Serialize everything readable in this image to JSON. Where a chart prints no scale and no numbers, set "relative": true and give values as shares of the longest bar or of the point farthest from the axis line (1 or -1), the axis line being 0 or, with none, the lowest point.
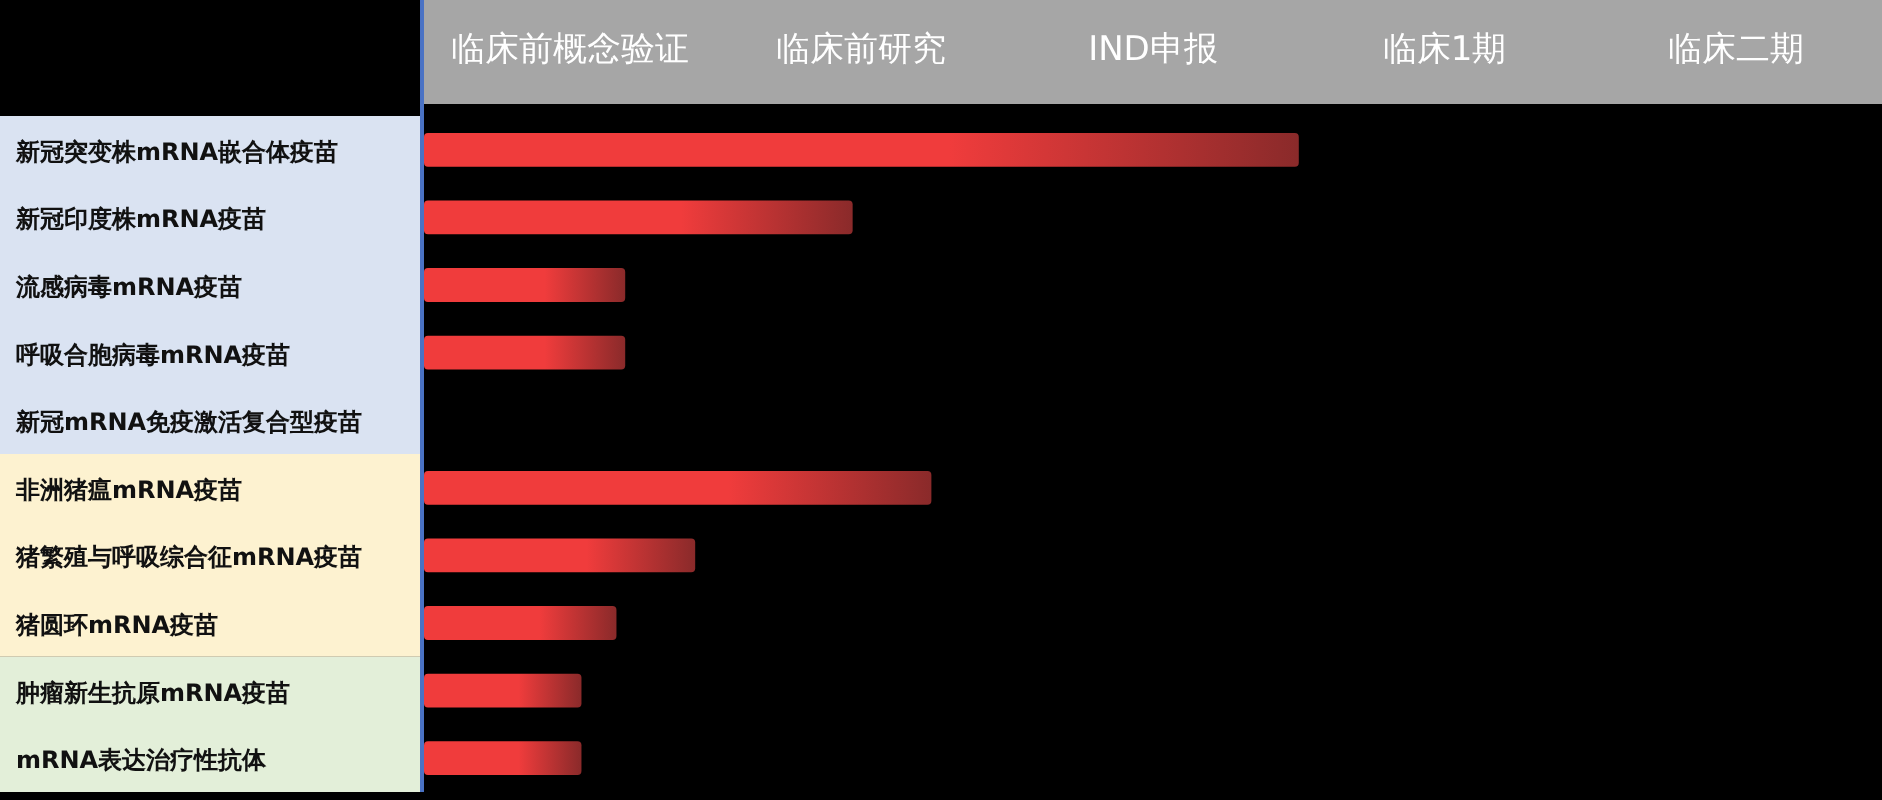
{
  "chart_data": {
    "type": "bar",
    "orientation": "horizontal",
    "relative": true,
    "color": "#f03c3c",
    "categories": [
      "新冠突变株mRNA嵌合体疫苗",
      "新冠印度株mRNA疫苗",
      "流感病毒mRNA疫苗",
      "呼吸合胞病毒mRNA疫苗",
      "新冠mRNA免疫激活复合型疫苗",
      "非洲猪瘟mRNA疫苗",
      "猪繁殖与呼吸综合征mRNA疫苗",
      "猪圆环mRNA疫苗",
      "肿瘤新生抗原mRNA疫苗",
      "mRNA表达治疗性抗体"
    ],
    "values": [
      1,
      0.49,
      0.23,
      0.23,
      null,
      0.58,
      0.31,
      0.22,
      0.18,
      0.18
    ],
    "annotations": [
      "临床前概念验证",
      "临床前研究",
      "IND申报",
      "临床1期",
      "临床二期"
    ]
  }
}
